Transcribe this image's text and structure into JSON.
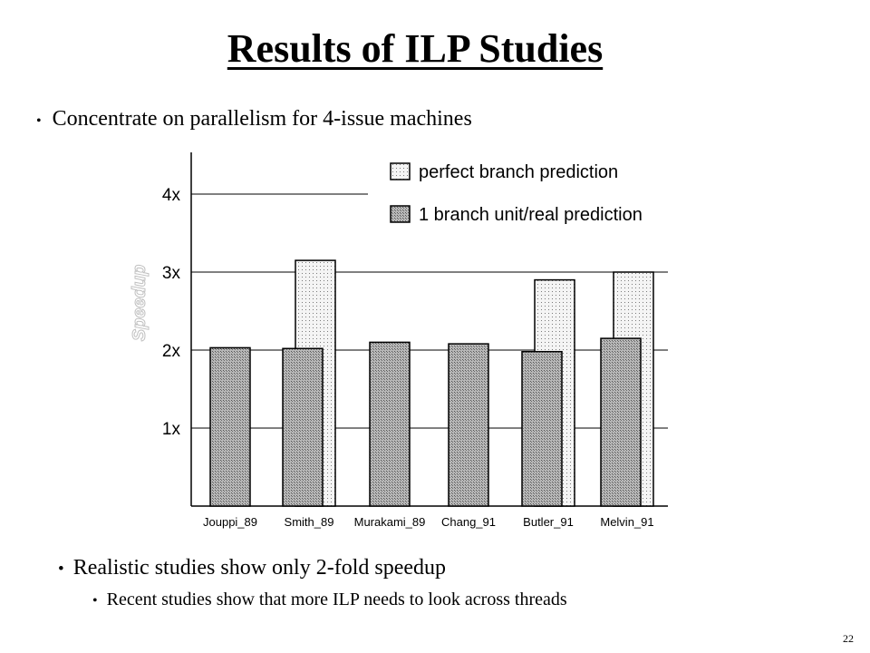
{
  "slide": {
    "title": "Results of ILP Studies",
    "bullets": [
      "Concentrate on parallelism for 4-issue machines",
      "Realistic studies show only 2-fold speedup",
      "Recent studies show that more ILP needs to look across threads"
    ],
    "page_number": "22"
  },
  "chart_data": {
    "type": "bar",
    "title": "",
    "ylabel": "Speedup",
    "xlabel": "",
    "ylim": [
      0,
      4.3
    ],
    "yticks": [
      1,
      2,
      3,
      4
    ],
    "ytick_labels": [
      "1x",
      "2x",
      "3x",
      "4x"
    ],
    "grid": "horizontal",
    "legend_position": "top-right",
    "categories": [
      "Jouppi_89",
      "Smith_89",
      "Murakami_89",
      "Chang_91",
      "Butler_91",
      "Melvin_91"
    ],
    "series": [
      {
        "name": "perfect branch prediction",
        "pattern": "dotted",
        "color": "#f2f2f2",
        "values": [
          null,
          3.15,
          null,
          null,
          2.9,
          3.0
        ]
      },
      {
        "name": "1 branch unit/real prediction",
        "pattern": "crosshatch",
        "color": "#9a9a9a",
        "values": [
          2.03,
          2.02,
          2.1,
          2.08,
          1.98,
          2.15
        ]
      }
    ]
  }
}
